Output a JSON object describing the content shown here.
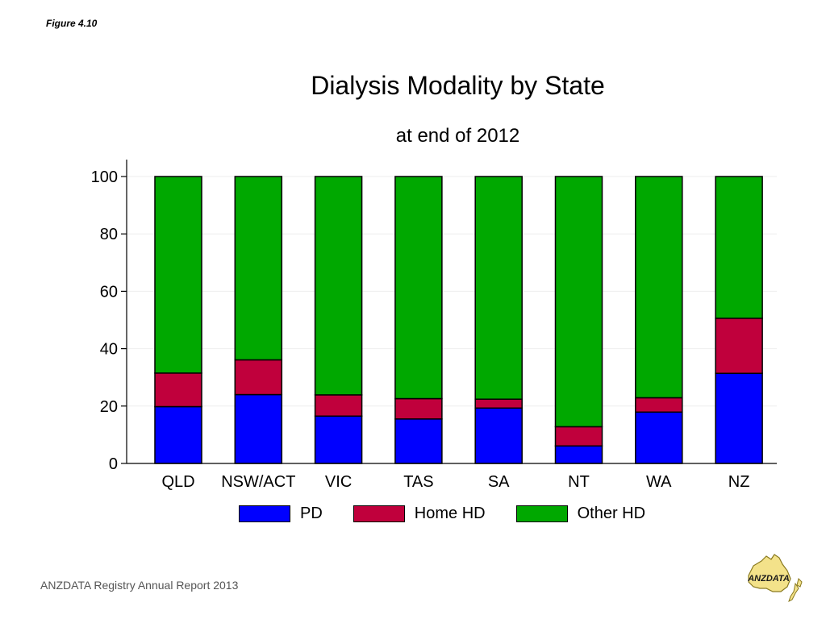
{
  "figure_label": "Figure 4.10",
  "footer": "ANZDATA Registry Annual Report 2013",
  "logo_text": "ANZDATA",
  "chart_data": {
    "type": "bar",
    "stacked": true,
    "title": "Dialysis Modality by State",
    "subtitle": "at end of 2012",
    "xlabel": "",
    "ylabel": "",
    "ylim": [
      0,
      100
    ],
    "yticks": [
      0,
      20,
      40,
      60,
      80,
      100
    ],
    "grid": true,
    "legend_position": "bottom",
    "categories": [
      "QLD",
      "NSW/ACT",
      "VIC",
      "TAS",
      "SA",
      "NT",
      "WA",
      "NZ"
    ],
    "series": [
      {
        "name": "PD",
        "color": "#0000ff",
        "values": [
          19.8,
          24.0,
          16.5,
          15.5,
          19.3,
          6.1,
          17.9,
          31.4
        ]
      },
      {
        "name": "Home HD",
        "color": "#c0003c",
        "values": [
          11.7,
          12.1,
          7.4,
          7.1,
          3.1,
          6.7,
          5.0,
          19.2
        ]
      },
      {
        "name": "Other HD",
        "color": "#00a800",
        "values": [
          68.5,
          63.9,
          76.1,
          77.4,
          77.6,
          87.2,
          77.1,
          49.4
        ]
      }
    ]
  }
}
